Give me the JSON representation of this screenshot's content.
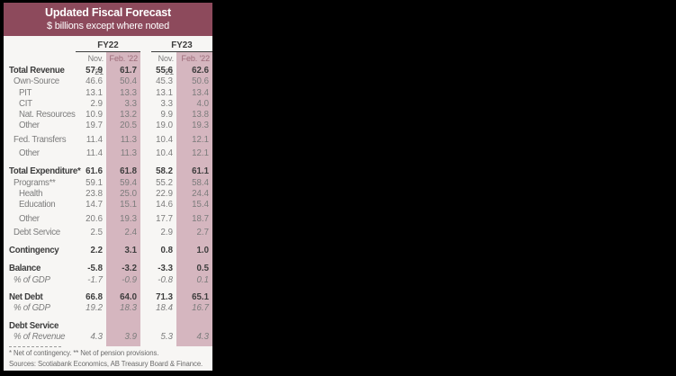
{
  "header": {
    "title": "Updated Fiscal Forecast",
    "subtitle": "$ billions except where noted"
  },
  "colors": {
    "header_bg": "#8d4a5c",
    "highlight_column": "#d5b6bf",
    "table_bg": "#f7f6f4",
    "canvas_bg": "#000000",
    "bold_text": "#3d3d3d",
    "gray_text": "#7c7c7c",
    "feb_header_text": "#9c6b79"
  },
  "chart_data": {
    "type": "table",
    "title": "Updated Fiscal Forecast",
    "subtitle": "$ billions except where noted",
    "column_groups": [
      "FY22",
      "FY23"
    ],
    "columns": [
      "Nov. '21",
      "Feb. '22",
      "Nov. '21",
      "Feb. '22"
    ],
    "highlighted_columns": [
      "FY22 Feb. '22",
      "FY23 Feb. '22"
    ],
    "rows": [
      {
        "label": "Total Revenue",
        "values": [
          "57.9",
          "61.7",
          "55.6",
          "62.6"
        ]
      },
      {
        "label": "Own-Source",
        "values": [
          "46.6",
          "50.4",
          "45.3",
          "50.6"
        ]
      },
      {
        "label": "PIT",
        "values": [
          "13.1",
          "13.3",
          "13.1",
          "13.4"
        ]
      },
      {
        "label": "CIT",
        "values": [
          "2.9",
          "3.3",
          "3.3",
          "4.0"
        ]
      },
      {
        "label": "Nat. Resources",
        "values": [
          "10.9",
          "13.2",
          "9.9",
          "13.8"
        ]
      },
      {
        "label": "Other",
        "values": [
          "19.7",
          "20.5",
          "19.0",
          "19.3"
        ]
      },
      {
        "label": "Fed. Transfers",
        "values": [
          "11.4",
          "11.3",
          "10.4",
          "12.1"
        ]
      },
      {
        "label": "Other",
        "values": [
          "11.4",
          "11.3",
          "10.4",
          "12.1"
        ]
      },
      {
        "label": "Total Expenditure*",
        "values": [
          "61.6",
          "61.8",
          "58.2",
          "61.1"
        ]
      },
      {
        "label": "Programs**",
        "values": [
          "59.1",
          "59.4",
          "55.2",
          "58.4"
        ]
      },
      {
        "label": "Health",
        "values": [
          "23.8",
          "25.0",
          "22.9",
          "24.4"
        ]
      },
      {
        "label": "Education",
        "values": [
          "14.7",
          "15.1",
          "14.6",
          "15.4"
        ]
      },
      {
        "label": "Other",
        "values": [
          "20.6",
          "19.3",
          "17.7",
          "18.7"
        ]
      },
      {
        "label": "Debt Service",
        "values": [
          "2.5",
          "2.4",
          "2.9",
          "2.7"
        ]
      },
      {
        "label": "Contingency",
        "values": [
          "2.2",
          "3.1",
          "0.8",
          "1.0"
        ]
      },
      {
        "label": "Balance",
        "values": [
          "-5.8",
          "-3.2",
          "-3.3",
          "0.5"
        ]
      },
      {
        "label": "% of GDP",
        "values": [
          "-1.7",
          "-0.9",
          "-0.8",
          "0.1"
        ]
      },
      {
        "label": "Net Debt",
        "values": [
          "66.8",
          "64.0",
          "71.3",
          "65.1"
        ]
      },
      {
        "label": "% of GDP",
        "values": [
          "19.2",
          "18.3",
          "18.4",
          "16.7"
        ]
      },
      {
        "label": "Debt Service",
        "values": [
          "",
          "",
          "",
          ""
        ]
      },
      {
        "label": "% of Revenue",
        "values": [
          "4.3",
          "3.9",
          "5.3",
          "4.3"
        ]
      }
    ],
    "footnotes": [
      "* Net of contingency. ** Net of pension provisions.",
      "Sources: Scotiabank Economics, AB Treasury Board & Finance."
    ]
  }
}
